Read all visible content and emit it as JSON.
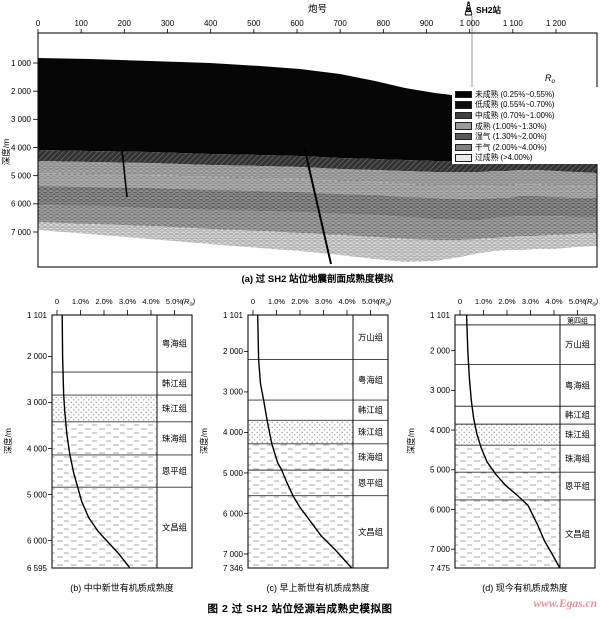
{
  "figure": {
    "caption": "图 2  过 SH2 站位烃源岩成熟史模拟图",
    "watermark": "www.Egas.cn"
  },
  "colors": {
    "watermark_pink": "#e8909a",
    "ink": "#000000",
    "paper": "#fefefe"
  },
  "top_panel": {
    "x_axis_title": "炮号",
    "station_label": "SH2站",
    "x_ticks": [
      "0",
      "100",
      "200",
      "300",
      "400",
      "500",
      "600",
      "700",
      "800",
      "900",
      "1 000",
      "1 100",
      "1 200"
    ],
    "y_axis_label": "深度/m",
    "y_ticks": [
      "1 000",
      "2 000",
      "3 000",
      "4 000",
      "5 000",
      "6 000",
      "7 000"
    ],
    "r_overlay": "Ro",
    "caption": "(a) 过 SH2 站位地震剖面成熟度模拟"
  },
  "chart_data": [
    {
      "id": "a",
      "type": "area",
      "title": "(a) 过 SH2 站位地震剖面成熟度模拟",
      "xlabel": "炮号",
      "ylabel": "深度/m",
      "x_ticks": [
        0,
        100,
        200,
        300,
        400,
        500,
        600,
        700,
        800,
        900,
        1000,
        1100,
        1200
      ],
      "y_ticks_m": [
        1000,
        2000,
        3000,
        4000,
        5000,
        6000,
        7000
      ],
      "station": {
        "label": "SH2站",
        "shot_number": 1000
      },
      "maturity_classes": [
        {
          "name": "未成熟",
          "ro_range": "0.25%~0.55%",
          "swatch": "#000000",
          "pattern": "solid"
        },
        {
          "name": "低成熟",
          "ro_range": "0.55%~0.70%",
          "swatch": "#0d0d0d",
          "pattern": "solid"
        },
        {
          "name": "中成熟",
          "ro_range": "0.70%~1.00%",
          "swatch": "#404040",
          "pattern": "hatch"
        },
        {
          "name": "成熟",
          "ro_range": "1.00%~1.30%",
          "swatch": "#999999",
          "pattern": "dots"
        },
        {
          "name": "湿气",
          "ro_range": "1.30%~2.00%",
          "swatch": "#5a5a5a",
          "pattern": "hatch"
        },
        {
          "name": "干气",
          "ro_range": "2.00%~4.00%",
          "swatch": "#828282",
          "pattern": "hatch"
        },
        {
          "name": "过成熟",
          "ro_range": ">4.00%",
          "swatch": "#eaeaea",
          "pattern": "dots"
        }
      ],
      "seafloor_depth_m": {
        "left_edge": 900,
        "at_station": 1400,
        "right_edge": 1550
      },
      "black_zone_base_depth_m": 4200,
      "section_base_depth_m": 7300
    },
    {
      "id": "b",
      "type": "line",
      "title": "(b) 中中新世有机质成熟度",
      "x_ticks": [
        "0",
        "1.0%",
        "2.0%",
        "3.0%",
        "4.0%",
        "5.0%"
      ],
      "x_unit": "(Ro)",
      "ylabel": "深度/m",
      "y_top_label": "1 101",
      "y_bottom_label": "6 595",
      "depth_top": 1101,
      "depth_bottom": 6595,
      "y_ticks": [
        {
          "label": "2 000",
          "value": 2000
        },
        {
          "label": "3 000",
          "value": 3000
        },
        {
          "label": "4 000",
          "value": 4000
        },
        {
          "label": "5 000",
          "value": 5000
        },
        {
          "label": "6 000",
          "value": 6000
        }
      ],
      "formations": [
        {
          "name": "粤海组",
          "top": 1101,
          "bottom": 2340,
          "texture": "none"
        },
        {
          "name": "韩江组",
          "top": 2340,
          "bottom": 2840,
          "texture": "none"
        },
        {
          "name": "珠江组",
          "top": 2840,
          "bottom": 3420,
          "texture": "dots"
        },
        {
          "name": "珠海组",
          "top": 3420,
          "bottom": 4140,
          "texture": "dash"
        },
        {
          "name": "恩平组",
          "top": 4140,
          "bottom": 4840,
          "texture": "dash"
        },
        {
          "name": "文昌组",
          "top": 4840,
          "bottom": 6595,
          "texture": "dash"
        }
      ],
      "curve_ro_depth": [
        [
          0.22,
          1101
        ],
        [
          0.24,
          2000
        ],
        [
          0.28,
          2800
        ],
        [
          0.33,
          3200
        ],
        [
          0.42,
          3700
        ],
        [
          0.55,
          4140
        ],
        [
          0.72,
          4550
        ],
        [
          0.88,
          4840
        ],
        [
          1.05,
          5150
        ],
        [
          1.35,
          5500
        ],
        [
          1.75,
          5800
        ],
        [
          2.2,
          6050
        ],
        [
          2.65,
          6300
        ],
        [
          3.1,
          6595
        ]
      ]
    },
    {
      "id": "c",
      "type": "line",
      "title": "(c) 早上新世有机质成熟度",
      "x_ticks": [
        "0",
        "1.0%",
        "2.0%",
        "3.0%",
        "4.0%",
        "5.0%"
      ],
      "x_unit": "(Ro)",
      "ylabel": "深度/m",
      "y_top_label": "1 101",
      "y_bottom_label": "7 346",
      "depth_top": 1101,
      "depth_bottom": 7346,
      "y_ticks": [
        {
          "label": "2 000",
          "value": 2000
        },
        {
          "label": "3 000",
          "value": 3000
        },
        {
          "label": "4 000",
          "value": 4000
        },
        {
          "label": "5 000",
          "value": 5000
        },
        {
          "label": "6 000",
          "value": 6000
        },
        {
          "label": "7 000",
          "value": 7000
        }
      ],
      "formations": [
        {
          "name": "万山组",
          "top": 1101,
          "bottom": 2200,
          "texture": "none"
        },
        {
          "name": "粤海组",
          "top": 2200,
          "bottom": 3200,
          "texture": "none"
        },
        {
          "name": "韩江组",
          "top": 3200,
          "bottom": 3700,
          "texture": "none"
        },
        {
          "name": "珠江组",
          "top": 3700,
          "bottom": 4280,
          "texture": "dots"
        },
        {
          "name": "珠海组",
          "top": 4280,
          "bottom": 4930,
          "texture": "dash"
        },
        {
          "name": "恩平组",
          "top": 4930,
          "bottom": 5560,
          "texture": "dash"
        },
        {
          "name": "文昌组",
          "top": 5560,
          "bottom": 7346,
          "texture": "dash"
        }
      ],
      "curve_ro_depth": [
        [
          0.2,
          1101
        ],
        [
          0.24,
          2200
        ],
        [
          0.32,
          2800
        ],
        [
          0.45,
          3200
        ],
        [
          0.6,
          3700
        ],
        [
          0.8,
          4280
        ],
        [
          1.05,
          4750
        ],
        [
          1.22,
          4930
        ],
        [
          1.45,
          5250
        ],
        [
          1.7,
          5560
        ],
        [
          2.0,
          5850
        ],
        [
          2.45,
          6200
        ],
        [
          2.9,
          6550
        ],
        [
          3.5,
          6900
        ],
        [
          4.2,
          7346
        ]
      ]
    },
    {
      "id": "d",
      "type": "line",
      "title": "(d) 现今有机质成熟度",
      "x_ticks": [
        "0",
        "1.0%",
        "2.0%",
        "3.0%",
        "4.0%",
        "5.0%"
      ],
      "x_unit": "(Ro)",
      "ylabel": "深度/m",
      "y_top_label": "1 101",
      "y_bottom_label": "7 475",
      "depth_top": 1101,
      "depth_bottom": 7475,
      "y_ticks": [
        {
          "label": "2 000",
          "value": 2000
        },
        {
          "label": "3 000",
          "value": 3000
        },
        {
          "label": "4 000",
          "value": 4000
        },
        {
          "label": "5 000",
          "value": 5000
        },
        {
          "label": "6 000",
          "value": 6000
        },
        {
          "label": "7 000",
          "value": 7000
        }
      ],
      "formations": [
        {
          "name": "第四组",
          "top": 1101,
          "bottom": 1350,
          "texture": "none"
        },
        {
          "name": "万山组",
          "top": 1350,
          "bottom": 2350,
          "texture": "none"
        },
        {
          "name": "粤海组",
          "top": 2350,
          "bottom": 3400,
          "texture": "none"
        },
        {
          "name": "韩江组",
          "top": 3400,
          "bottom": 3850,
          "texture": "none"
        },
        {
          "name": "珠江组",
          "top": 3850,
          "bottom": 4380,
          "texture": "dots"
        },
        {
          "name": "珠海组",
          "top": 4380,
          "bottom": 5060,
          "texture": "dash"
        },
        {
          "name": "恩平组",
          "top": 5060,
          "bottom": 5760,
          "texture": "dash"
        },
        {
          "name": "文昌组",
          "top": 5760,
          "bottom": 7475,
          "texture": "dash"
        }
      ],
      "curve_ro_depth": [
        [
          0.28,
          1101
        ],
        [
          0.33,
          2000
        ],
        [
          0.4,
          2700
        ],
        [
          0.48,
          3250
        ],
        [
          0.58,
          3700
        ],
        [
          0.72,
          4100
        ],
        [
          0.9,
          4450
        ],
        [
          1.15,
          4800
        ],
        [
          1.5,
          5100
        ],
        [
          1.95,
          5400
        ],
        [
          2.45,
          5650
        ],
        [
          2.9,
          5900
        ],
        [
          3.3,
          6390
        ],
        [
          3.6,
          6800
        ],
        [
          3.9,
          7100
        ],
        [
          4.25,
          7475
        ]
      ]
    }
  ]
}
